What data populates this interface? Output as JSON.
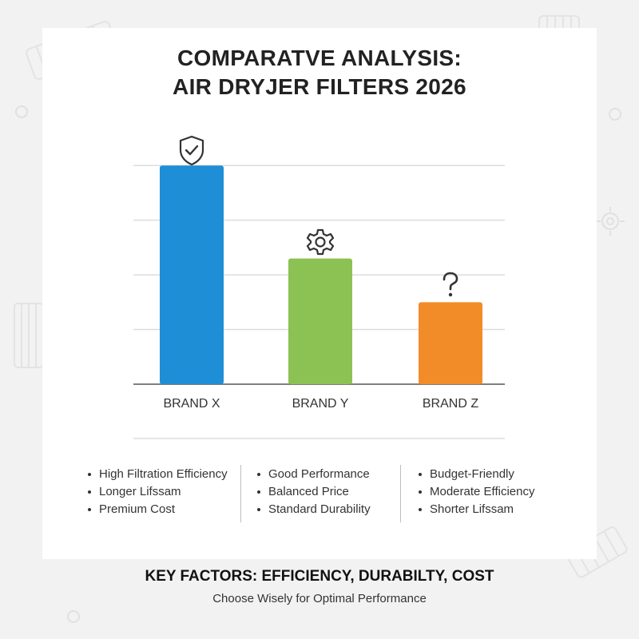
{
  "title": {
    "line1": "COMPARATVE ANALYSIS:",
    "line2": "AIR DRYJER FILTERS 2026"
  },
  "chart_data": {
    "type": "bar",
    "categories": [
      "BRAND X",
      "BRAND Y",
      "BRAND Z"
    ],
    "values": [
      4,
      2.3,
      1.5
    ],
    "colors": [
      "#1e8fd6",
      "#8cc153",
      "#f28c28"
    ],
    "ylim": [
      0,
      4.5
    ],
    "grid": true,
    "bar_icons": [
      "shield-check-icon",
      "gear-icon",
      "question-icon"
    ]
  },
  "notes": [
    {
      "items": [
        "High Filtration Efficiency",
        "Longer Lifssam",
        "Premium Cost"
      ]
    },
    {
      "items": [
        "Good Performance",
        "Balanced Price",
        "Standard Durability"
      ]
    },
    {
      "items": [
        "Budget-Friendly",
        "Moderate Efficiency",
        "Shorter Lifssam"
      ]
    }
  ],
  "footer": {
    "title": "KEY FACTORS: EFFICIENCY, DURABILTY, COST",
    "subtitle": "Choose Wisely for Optimal Performance"
  }
}
